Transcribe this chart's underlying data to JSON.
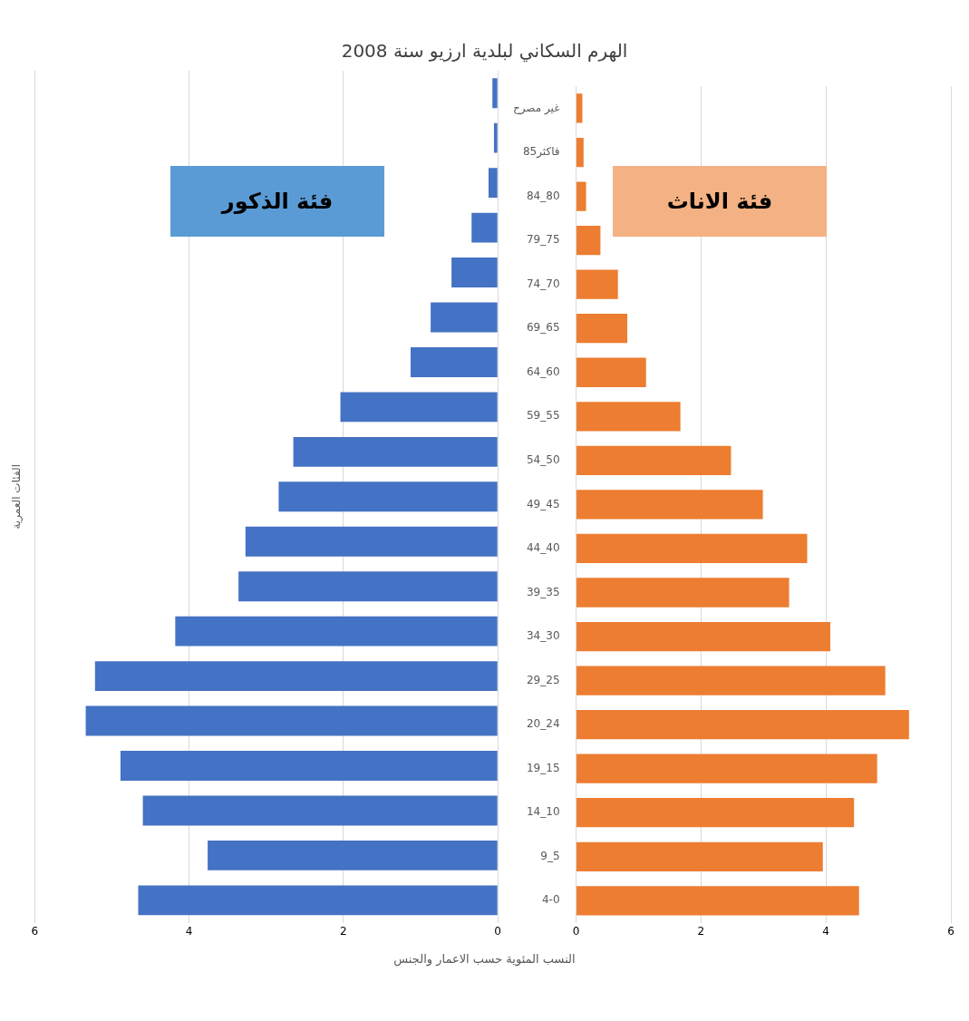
{
  "chart_data": [
    {
      "type": "bar",
      "orientation": "horizontal",
      "title": "الهرم السكاني لبلدية ارزيو سنة 2008",
      "xlabel": "النسب المئوية حسب الاعمار والجنس",
      "ylabel": "الفئات العمرية",
      "categories": [
        null,
        null,
        null,
        null,
        null,
        null,
        null,
        null,
        null,
        null,
        null,
        null,
        null,
        null,
        null,
        null,
        null,
        null,
        null
      ],
      "series": [
        {
          "color": "#4472c4",
          "values": [
            0.07,
            0.05,
            0.12,
            0.34,
            0.6,
            0.87,
            1.13,
            2.04,
            2.65,
            2.84,
            3.27,
            3.36,
            4.18,
            5.22,
            5.34,
            4.89,
            4.6,
            3.76,
            4.66
          ]
        }
      ],
      "xlim": [
        6,
        0
      ],
      "xticks": [
        6,
        4,
        2,
        0
      ],
      "grid": "x",
      "tick_labels": "x",
      "legend": false,
      "annotations": [
        "فئة الذكور"
      ]
    },
    {
      "type": "bar",
      "orientation": "horizontal",
      "categories": [
        "غير مصرح",
        "85فاكثر",
        "84_80",
        "79_75",
        "74_70",
        "69_65",
        "64_60",
        "59_55",
        "54_50",
        "49_45",
        "44_40",
        "39_35",
        "34_30",
        "29_25",
        "20_24",
        "19_15",
        "14_10",
        "9_5",
        "4-0"
      ],
      "series": [
        {
          "color": "#ed7d31",
          "values": [
            0.1,
            0.12,
            0.16,
            0.39,
            0.67,
            0.82,
            1.12,
            1.67,
            2.48,
            2.99,
            3.7,
            3.41,
            4.07,
            4.95,
            5.33,
            4.82,
            4.45,
            3.95,
            4.53
          ]
        }
      ],
      "xlim": [
        0,
        6
      ],
      "xticks": [
        0,
        2,
        4,
        6
      ],
      "grid": "x",
      "legend": false,
      "annotations": [
        "فئة الاناث"
      ]
    }
  ]
}
